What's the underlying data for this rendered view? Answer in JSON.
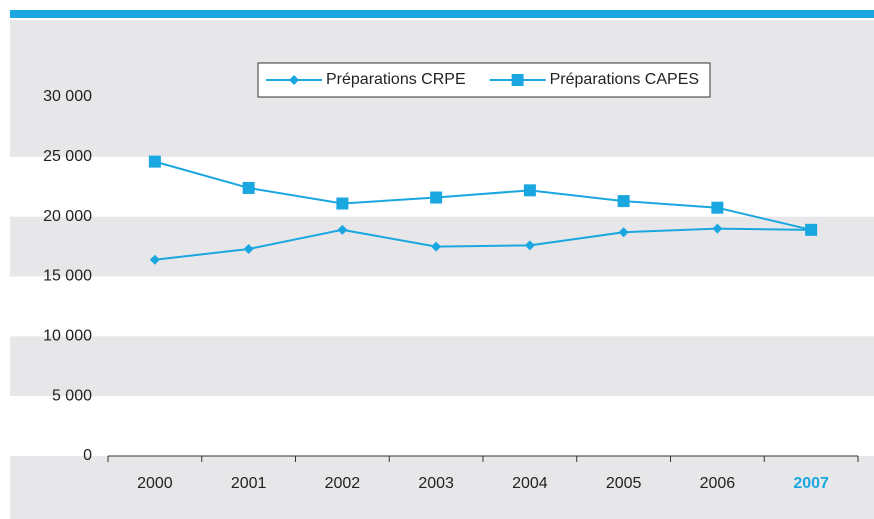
{
  "chart_data": {
    "type": "line",
    "categories": [
      "2000",
      "2001",
      "2002",
      "2003",
      "2004",
      "2005",
      "2006",
      "2007"
    ],
    "series": [
      {
        "name": "Préparations CRPE",
        "color": "#1aa7e0",
        "marker": "diamond",
        "values": [
          16400,
          17300,
          18900,
          17500,
          17600,
          18700,
          19000,
          18900
        ]
      },
      {
        "name": "Préparations CAPES",
        "color": "#1aa7e0",
        "marker": "square",
        "values": [
          24600,
          22400,
          21100,
          21600,
          22200,
          21300,
          20750,
          18900
        ]
      }
    ],
    "ylim": [
      0,
      30000
    ],
    "yticks": [
      0,
      {
        "value": 5000,
        "label": "5 000"
      },
      {
        "value": 10000,
        "label": "10 000"
      },
      {
        "value": 15000,
        "label": "15 000"
      },
      {
        "value": 20000,
        "label": "20 000"
      },
      {
        "value": 25000,
        "label": "25 000"
      },
      {
        "value": 30000,
        "label": "30 000"
      }
    ],
    "highlight": {
      "index": 7,
      "color": "#1aa7e0"
    },
    "legend": "top"
  }
}
